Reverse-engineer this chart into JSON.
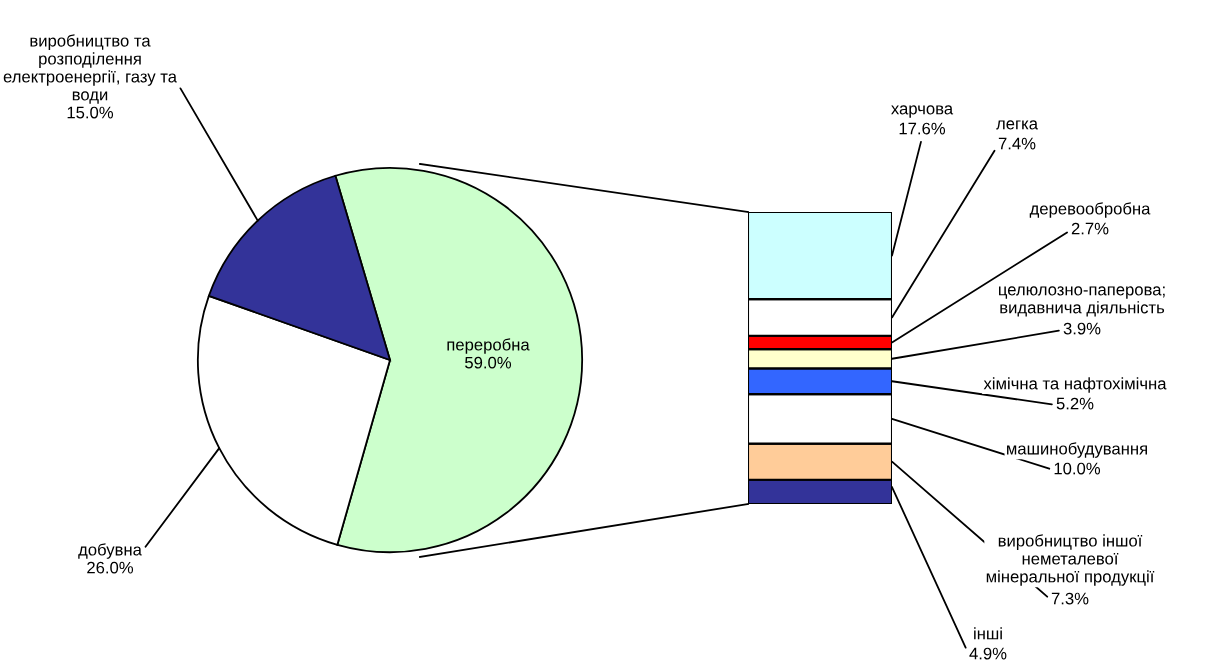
{
  "chart_data": [
    {
      "type": "pie",
      "categories": [
        "переробна",
        "добувна",
        "виробництво та розподілення електроенергії, газу та води"
      ],
      "values": [
        59.0,
        26.0,
        15.0
      ],
      "colors": [
        "#ccffcc",
        "#ffffff",
        "#333399"
      ],
      "value_labels": [
        "59.0%",
        "26.0%",
        "15.0%"
      ]
    },
    {
      "type": "bar",
      "stacked": true,
      "categories": [
        null
      ],
      "series": [
        {
          "name": "інші",
          "color": "#333399",
          "values": [
            4.9
          ],
          "value_labels": [
            "4.9%"
          ]
        },
        {
          "name": "виробництво іншої неметалевої мінеральної продукції",
          "color": "#ffcc99",
          "values": [
            7.3
          ],
          "value_labels": [
            "7.3%"
          ]
        },
        {
          "name": "машинобудування",
          "color": "#ffffff",
          "values": [
            10.0
          ],
          "value_labels": [
            "10.0%"
          ]
        },
        {
          "name": "хімічна та нафтохімічна",
          "color": "#3366ff",
          "values": [
            5.2
          ],
          "value_labels": [
            "5.2%"
          ]
        },
        {
          "name": "целюлозно-паперова; видавнича діяльність",
          "color": "#ffffcc",
          "values": [
            3.9
          ],
          "value_labels": [
            "3.9%"
          ]
        },
        {
          "name": "деревообробна",
          "color": "#ff0000",
          "values": [
            2.7
          ],
          "value_labels": [
            "2.7%"
          ]
        },
        {
          "name": "легка",
          "color": "#ffffff",
          "values": [
            7.4
          ],
          "value_labels": [
            "7.4%"
          ]
        },
        {
          "name": "харчова",
          "color": "#ccffff",
          "values": [
            17.6
          ],
          "value_labels": [
            "17.6%"
          ]
        }
      ]
    }
  ]
}
